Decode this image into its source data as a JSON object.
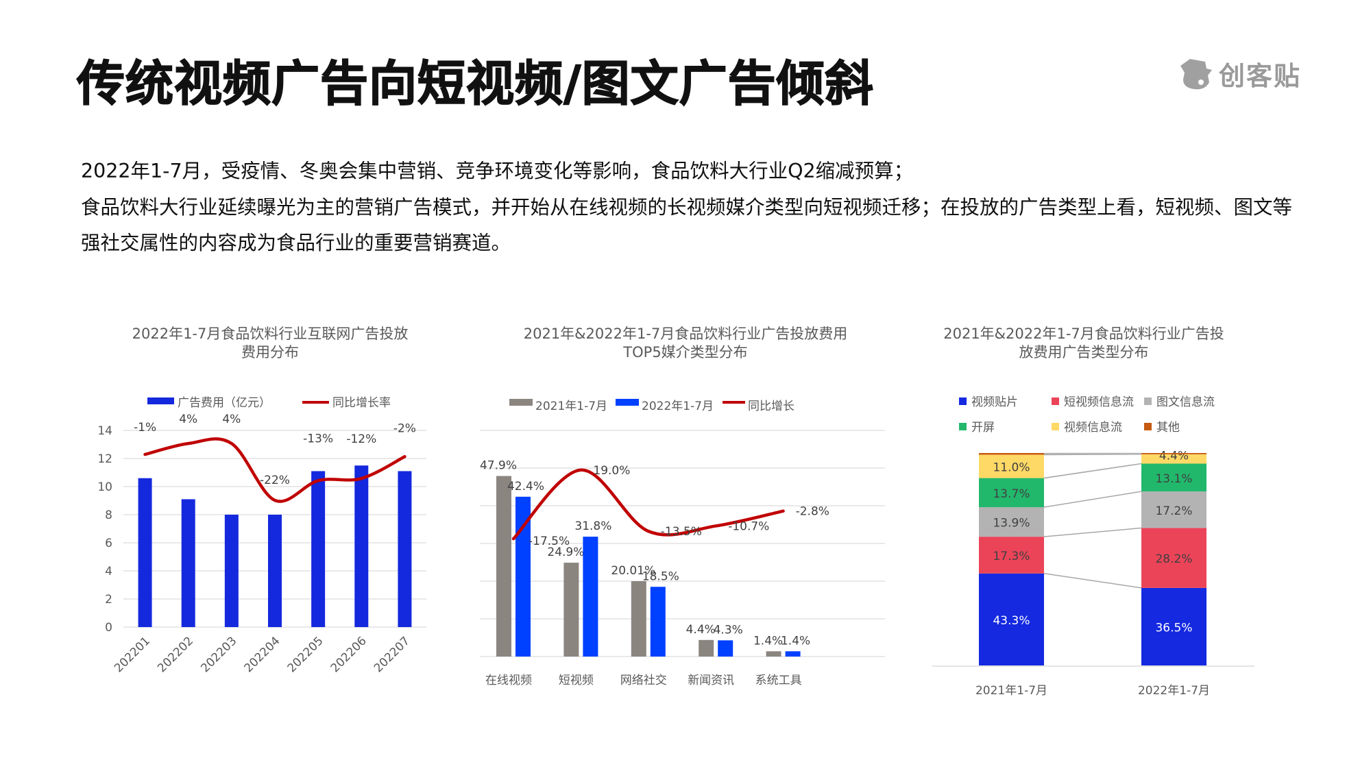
{
  "header": {
    "title": "传统视频广告向短视频/图文广告倾斜",
    "logo_text": "创客贴"
  },
  "paragraphs": [
    "2022年1-7月，受疫情、冬奥会集中营销、竞争环境变化等影响，食品饮料大行业Q2缩减预算；",
    "食品饮料大行业延续曝光为主的营销广告模式，并开始从在线视频的长视频媒介类型向短视频迁移；在投放的广告类型上看，短视频、图文等",
    "强社交属性的内容成为食品行业的重要营销赛道。"
  ],
  "chart_data": [
    {
      "type": "bar",
      "title": [
        "2022年1-7月食品饮料行业互联网广告投放",
        "费用分布"
      ],
      "categories": [
        "202201",
        "202202",
        "202203",
        "202204",
        "202205",
        "202206",
        "202207"
      ],
      "series": [
        {
          "name": "广告费用（亿元）",
          "type": "bar",
          "values": [
            10.6,
            9.1,
            8.0,
            8.0,
            11.1,
            11.5,
            11.1
          ],
          "color": "#1429DD"
        },
        {
          "name": "同比增长率",
          "type": "line",
          "axis": "secondary",
          "values": [
            -1,
            4,
            4,
            -22,
            -13,
            -12,
            -2
          ],
          "labels": [
            "-1%",
            "4%",
            "4%",
            "-22%",
            "-13%",
            "-12%",
            "-2%"
          ],
          "color": "#C00000"
        }
      ],
      "ylim": [
        0,
        14
      ],
      "yticks": [
        "0",
        "2",
        "4",
        "6",
        "8",
        "10",
        "12",
        "14"
      ],
      "y2lim": [
        -80,
        10
      ],
      "grid": true,
      "legend": "top"
    },
    {
      "type": "bar",
      "title": [
        "2021年&2022年1-7月食品饮料行业广告投放费用",
        "TOP5媒介类型分布"
      ],
      "categories": [
        "在线视频",
        "短视频",
        "网络社交",
        "新闻资讯",
        "系统工具"
      ],
      "series": [
        {
          "name": "2021年1-7月",
          "type": "bar",
          "values": [
            47.9,
            24.9,
            20.0,
            4.4,
            1.4
          ],
          "labels": [
            "47.9%",
            "24.9%",
            "20.01%",
            "4.4%",
            "1.4%"
          ],
          "color": "#8B8580"
        },
        {
          "name": "2022年1-7月",
          "type": "bar",
          "values": [
            42.4,
            31.8,
            18.5,
            4.3,
            1.4
          ],
          "labels": [
            "42.4%",
            "31.8%",
            "18.5%",
            "4.3%",
            "1.4%"
          ],
          "color": "#0040FF"
        },
        {
          "name": "同比增长",
          "type": "line",
          "axis": "secondary",
          "values": [
            -17.5,
            19.0,
            -13.5,
            -10.7,
            -2.8
          ],
          "labels": [
            "-17.5%",
            "19.0%",
            "-13.5%",
            "-10.7%",
            "-2.8%"
          ],
          "color": "#C00000"
        }
      ],
      "ylim": [
        0,
        60
      ],
      "y2lim": [
        -80,
        40
      ],
      "grid": true,
      "legend": "top"
    },
    {
      "type": "bar",
      "stacked": true,
      "title": [
        "2021年&2022年1-7月食品饮料行业广告投",
        "放费用广告类型分布"
      ],
      "categories": [
        "2021年1-7月",
        "2022年1-7月"
      ],
      "series": [
        {
          "name": "视频贴片",
          "values": [
            43.3,
            36.5
          ],
          "labels": [
            "43.3%",
            "36.5%"
          ],
          "color": "#1429E0"
        },
        {
          "name": "短视频信息流",
          "values": [
            17.3,
            28.2
          ],
          "labels": [
            "17.3%",
            "28.2%"
          ],
          "color": "#EB4458"
        },
        {
          "name": "图文信息流",
          "values": [
            13.9,
            17.2
          ],
          "labels": [
            "13.9%",
            "17.2%"
          ],
          "color": "#B3B3B3"
        },
        {
          "name": "开屏",
          "values": [
            13.7,
            13.1
          ],
          "labels": [
            "13.7%",
            "13.1%"
          ],
          "color": "#22B86C"
        },
        {
          "name": "视频信息流",
          "values": [
            11.0,
            4.4
          ],
          "labels": [
            "11.0%",
            "4.4%"
          ],
          "color": "#FFD966"
        },
        {
          "name": "其他",
          "values": [
            0.8,
            0.6
          ],
          "labels": [
            "",
            ""
          ],
          "color": "#C55A11"
        }
      ],
      "ylim": [
        0,
        100
      ],
      "legend": "top"
    }
  ]
}
